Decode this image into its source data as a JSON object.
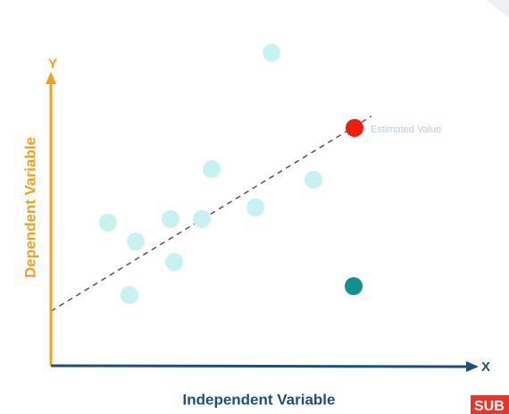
{
  "axes": {
    "y_letter": "Y",
    "x_letter": "X",
    "y_title": "Dependent Variable",
    "x_title": "Independent Variable"
  },
  "annotation": "Estimated Value",
  "badge": "SUB"
}
